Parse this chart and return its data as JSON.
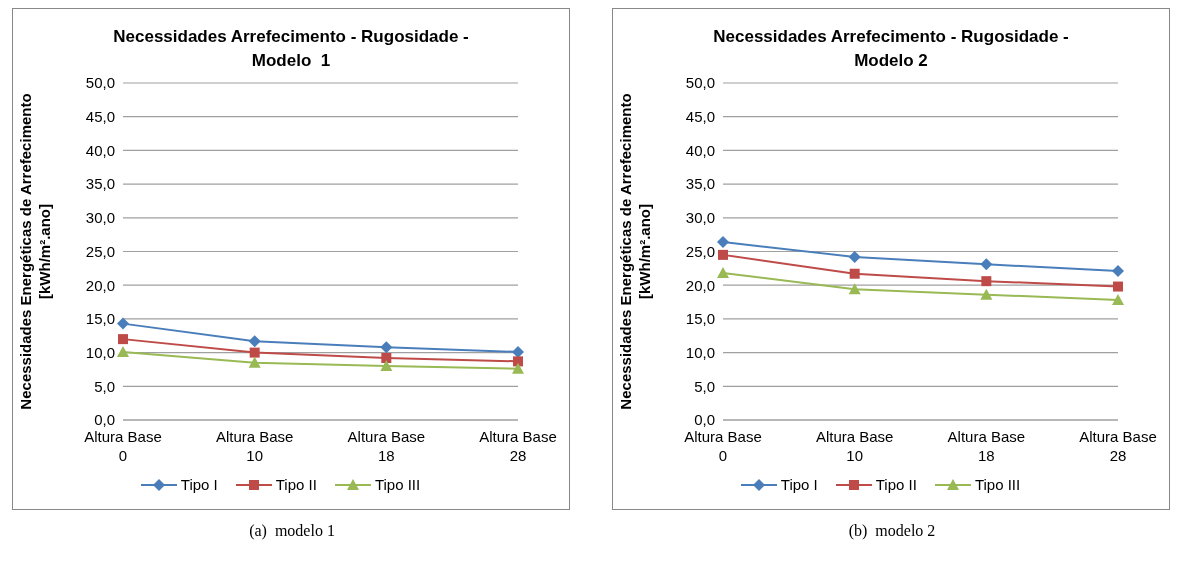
{
  "chart_data": [
    {
      "type": "line",
      "title": "Necessidades Arrefecimento - Rugosidade - Modelo  1",
      "ylabel": "Necessidades Energéticas de Arrefecimento [kWh/m².ano]",
      "categories": [
        "Altura Base 0",
        "Altura Base 10",
        "Altura Base 18",
        "Altura Base 28"
      ],
      "series": [
        {
          "name": "Tipo I",
          "color": "#4a7ebb",
          "marker": "diamond",
          "values": [
            14.3,
            11.7,
            10.8,
            10.1
          ]
        },
        {
          "name": "Tipo II",
          "color": "#be4b48",
          "marker": "square",
          "values": [
            12.0,
            10.0,
            9.2,
            8.7
          ]
        },
        {
          "name": "Tipo III",
          "color": "#98b954",
          "marker": "triangle",
          "values": [
            10.1,
            8.5,
            8.0,
            7.6
          ]
        }
      ],
      "ylim": [
        0,
        50
      ],
      "yticks": [
        {
          "value": 0,
          "label": "0,0"
        },
        {
          "value": 5,
          "label": "5,0"
        },
        {
          "value": 10,
          "label": "10,0"
        },
        {
          "value": 15,
          "label": "15,0"
        },
        {
          "value": 20,
          "label": "20,0"
        },
        {
          "value": 25,
          "label": "25,0"
        },
        {
          "value": 30,
          "label": "30,0"
        },
        {
          "value": 35,
          "label": "35,0"
        },
        {
          "value": 40,
          "label": "40,0"
        },
        {
          "value": 45,
          "label": "45,0"
        },
        {
          "value": 50,
          "label": "50,0"
        }
      ],
      "grid": "y",
      "legend": "bottom",
      "annotations": [
        "(a)  modelo 1"
      ]
    },
    {
      "type": "line",
      "title": "Necessidades Arrefecimento - Rugosidade - Modelo 2",
      "ylabel": "Necessidades Energéticas de Arrefecimento [kWh/m².ano]",
      "categories": [
        "Altura Base 0",
        "Altura Base 10",
        "Altura Base 18",
        "Altura Base 28"
      ],
      "series": [
        {
          "name": "Tipo I",
          "color": "#4a7ebb",
          "marker": "diamond",
          "values": [
            26.4,
            24.2,
            23.1,
            22.1
          ]
        },
        {
          "name": "Tipo II",
          "color": "#be4b48",
          "marker": "square",
          "values": [
            24.5,
            21.7,
            20.6,
            19.8
          ]
        },
        {
          "name": "Tipo III",
          "color": "#98b954",
          "marker": "triangle",
          "values": [
            21.8,
            19.4,
            18.6,
            17.8
          ]
        }
      ],
      "ylim": [
        0,
        50
      ],
      "yticks": [
        {
          "value": 0,
          "label": "0,0"
        },
        {
          "value": 5,
          "label": "5,0"
        },
        {
          "value": 10,
          "label": "10,0"
        },
        {
          "value": 15,
          "label": "15,0"
        },
        {
          "value": 20,
          "label": "20,0"
        },
        {
          "value": 25,
          "label": "25,0"
        },
        {
          "value": 30,
          "label": "30,0"
        },
        {
          "value": 35,
          "label": "35,0"
        },
        {
          "value": 40,
          "label": "40,0"
        },
        {
          "value": 45,
          "label": "45,0"
        },
        {
          "value": 50,
          "label": "50,0"
        }
      ],
      "grid": "y",
      "legend": "bottom",
      "annotations": [
        "(b)  modelo 2"
      ]
    }
  ]
}
